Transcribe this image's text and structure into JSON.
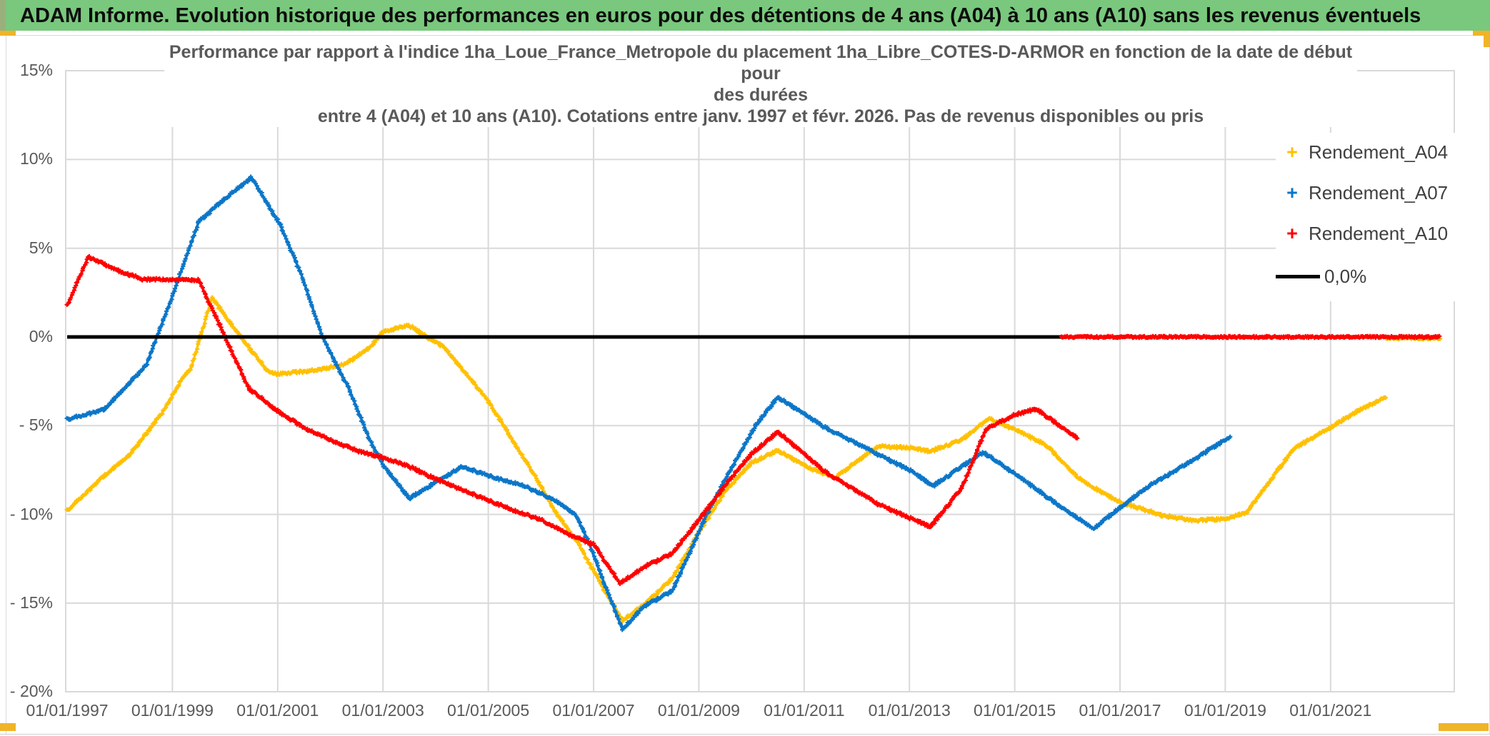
{
  "banner": {
    "title": "ADAM Informe. Evolution historique des performances en euros pour des détentions de 4 ans (A04) à 10 ans (A10) sans les revenus éventuels",
    "bg_color": "#79c87d",
    "accent_color": "#f0b428"
  },
  "chart_data": {
    "type": "line",
    "title_lines": [
      "Performance par rapport à l'indice 1ha_Loue_France_Metropole  du placement 1ha_Libre_COTES-D-ARMOR en fonction de la date de début pour",
      "des durées",
      "entre 4 (A04) et 10 ans (A10). Cotations entre janv. 1997 et févr. 2026. Pas de revenus disponibles ou pris"
    ],
    "grid": "on",
    "legend_position": "top-right",
    "x_axis": {
      "tick_labels": [
        "01/01/1997",
        "01/01/1999",
        "01/01/2001",
        "01/01/2003",
        "01/01/2005",
        "01/01/2007",
        "01/01/2009",
        "01/01/2011",
        "01/01/2013",
        "01/01/2015",
        "01/01/2017",
        "01/01/2019",
        "01/01/2021"
      ],
      "tick_years": [
        1997,
        1999,
        2001,
        2003,
        2005,
        2007,
        2009,
        2011,
        2013,
        2015,
        2017,
        2019,
        2021
      ],
      "range_years": [
        1997.0,
        2023.35
      ]
    },
    "y_axis": {
      "tick_labels": [
        "15%",
        "10%",
        "5%",
        "0%",
        "- 5%",
        "- 10%",
        "- 15%",
        "- 20%"
      ],
      "tick_values": [
        15,
        10,
        5,
        0,
        -5,
        -10,
        -15,
        -20
      ],
      "ylim": [
        -20,
        15
      ],
      "unit": "%"
    },
    "series": [
      {
        "name": "Rendement_A04",
        "color": "#FFC000",
        "points": [
          [
            1997.0,
            -9.8
          ],
          [
            1997.6,
            -8.1
          ],
          [
            1998.2,
            -6.6
          ],
          [
            1998.8,
            -4.3
          ],
          [
            1999.2,
            -2.3
          ],
          [
            1999.35,
            -1.8
          ],
          [
            1999.75,
            2.2
          ],
          [
            2000.3,
            0.0
          ],
          [
            2000.8,
            -1.9
          ],
          [
            2001.0,
            -2.1
          ],
          [
            2001.8,
            -1.85
          ],
          [
            2002.3,
            -1.5
          ],
          [
            2002.75,
            -0.6
          ],
          [
            2003.0,
            0.3
          ],
          [
            2003.5,
            0.65
          ],
          [
            2004.0,
            -0.3
          ],
          [
            2004.15,
            -0.55
          ],
          [
            2004.7,
            -2.5
          ],
          [
            2005.0,
            -3.6
          ],
          [
            2005.5,
            -6.0
          ],
          [
            2005.9,
            -7.9
          ],
          [
            2006.3,
            -10.0
          ],
          [
            2006.7,
            -11.6
          ],
          [
            2007.0,
            -13.2
          ],
          [
            2007.25,
            -14.5
          ],
          [
            2007.55,
            -16.0
          ],
          [
            2008.0,
            -15.0
          ],
          [
            2008.5,
            -13.6
          ],
          [
            2009.0,
            -11.0
          ],
          [
            2009.5,
            -8.7
          ],
          [
            2010.0,
            -7.1
          ],
          [
            2010.5,
            -6.4
          ],
          [
            2011.1,
            -7.4
          ],
          [
            2011.6,
            -7.9
          ],
          [
            2012.4,
            -6.15
          ],
          [
            2013.0,
            -6.25
          ],
          [
            2013.4,
            -6.45
          ],
          [
            2014.0,
            -5.8
          ],
          [
            2014.5,
            -4.6
          ],
          [
            2015.0,
            -5.2
          ],
          [
            2015.6,
            -6.1
          ],
          [
            2016.2,
            -7.9
          ],
          [
            2016.5,
            -8.5
          ],
          [
            2017.0,
            -9.3
          ],
          [
            2017.8,
            -10.05
          ],
          [
            2018.4,
            -10.35
          ],
          [
            2019.0,
            -10.25
          ],
          [
            2019.4,
            -9.9
          ],
          [
            2020.3,
            -6.3
          ],
          [
            2021.0,
            -5.1
          ],
          [
            2021.5,
            -4.2
          ],
          [
            2022.05,
            -3.4
          ]
        ],
        "zero_segment": [
          2022.05,
          2023.08
        ]
      },
      {
        "name": "Rendement_A07",
        "color": "#0b76c8",
        "points": [
          [
            1997.0,
            -4.65
          ],
          [
            1997.7,
            -4.1
          ],
          [
            1998.5,
            -1.6
          ],
          [
            1999.0,
            2.3
          ],
          [
            1999.5,
            6.5
          ],
          [
            2000.0,
            7.8
          ],
          [
            2000.5,
            9.0
          ],
          [
            2001.05,
            6.3
          ],
          [
            2001.45,
            3.5
          ],
          [
            2001.85,
            0.0
          ],
          [
            2002.35,
            -2.9
          ],
          [
            2002.75,
            -5.8
          ],
          [
            2003.0,
            -7.2
          ],
          [
            2003.5,
            -9.1
          ],
          [
            2004.5,
            -7.3
          ],
          [
            2005.3,
            -8.1
          ],
          [
            2005.6,
            -8.3
          ],
          [
            2006.2,
            -9.1
          ],
          [
            2006.65,
            -10.0
          ],
          [
            2006.9,
            -11.5
          ],
          [
            2007.1,
            -13.1
          ],
          [
            2007.55,
            -16.5
          ],
          [
            2007.95,
            -15.2
          ],
          [
            2008.5,
            -14.3
          ],
          [
            2009.15,
            -10.0
          ],
          [
            2009.6,
            -7.5
          ],
          [
            2010.1,
            -4.9
          ],
          [
            2010.5,
            -3.4
          ],
          [
            2011.4,
            -5.1
          ],
          [
            2013.0,
            -7.5
          ],
          [
            2013.45,
            -8.4
          ],
          [
            2014.4,
            -6.5
          ],
          [
            2015.0,
            -7.7
          ],
          [
            2015.7,
            -9.2
          ],
          [
            2016.5,
            -10.8
          ],
          [
            2017.0,
            -9.6
          ],
          [
            2017.6,
            -8.3
          ],
          [
            2018.3,
            -7.1
          ],
          [
            2019.1,
            -5.6
          ]
        ]
      },
      {
        "name": "Rendement_A10",
        "color": "#fe0000",
        "points": [
          [
            1997.0,
            1.75
          ],
          [
            1997.4,
            4.5
          ],
          [
            1998.0,
            3.7
          ],
          [
            1998.45,
            3.25
          ],
          [
            1999.5,
            3.2
          ],
          [
            2000.0,
            0.0
          ],
          [
            2000.45,
            -2.9
          ],
          [
            2001.05,
            -4.3
          ],
          [
            2001.55,
            -5.2
          ],
          [
            2002.0,
            -5.8
          ],
          [
            2002.5,
            -6.4
          ],
          [
            2003.0,
            -6.8
          ],
          [
            2003.5,
            -7.3
          ],
          [
            2004.0,
            -8.0
          ],
          [
            2004.5,
            -8.6
          ],
          [
            2005.0,
            -9.2
          ],
          [
            2005.5,
            -9.8
          ],
          [
            2006.0,
            -10.3
          ],
          [
            2006.5,
            -11.1
          ],
          [
            2007.0,
            -11.7
          ],
          [
            2007.5,
            -13.9
          ],
          [
            2008.0,
            -12.9
          ],
          [
            2008.5,
            -12.2
          ],
          [
            2009.0,
            -10.3
          ],
          [
            2009.6,
            -8.0
          ],
          [
            2010.0,
            -6.6
          ],
          [
            2010.5,
            -5.35
          ],
          [
            2011.4,
            -7.6
          ],
          [
            2012.4,
            -9.4
          ],
          [
            2013.0,
            -10.2
          ],
          [
            2013.4,
            -10.7
          ],
          [
            2014.0,
            -8.5
          ],
          [
            2014.45,
            -5.2
          ],
          [
            2015.0,
            -4.4
          ],
          [
            2015.4,
            -4.05
          ],
          [
            2016.2,
            -5.7
          ]
        ],
        "zero_segment": [
          2015.88,
          2023.08
        ]
      },
      {
        "name": "0,0%",
        "color": "#000000",
        "type": "hline",
        "value": 0.0,
        "span": [
          1997.0,
          2015.92
        ]
      }
    ],
    "legend": [
      {
        "label": "Rendement_A04",
        "marker": "+",
        "color": "#FFC000"
      },
      {
        "label": "Rendement_A07",
        "marker": "+",
        "color": "#0b76c8"
      },
      {
        "label": "Rendement_A10",
        "marker": "+",
        "color": "#fe0000"
      },
      {
        "label": "0,0%",
        "marker": "line",
        "color": "#000000"
      }
    ]
  }
}
